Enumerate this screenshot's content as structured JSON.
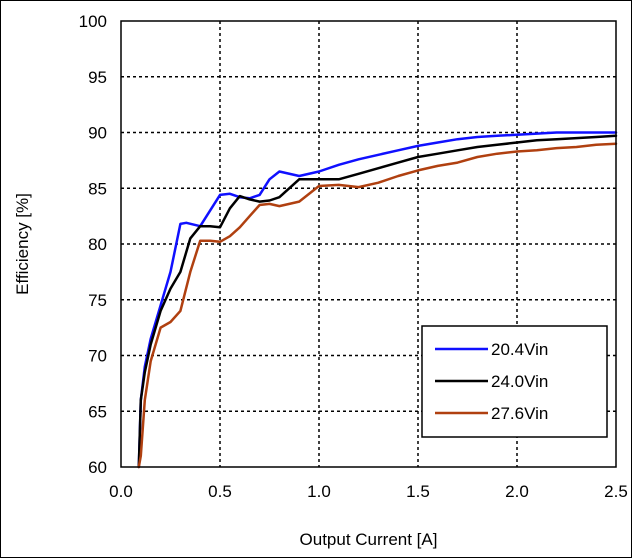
{
  "chart_data": {
    "type": "line",
    "title": "",
    "xlabel": "Output Current [A]",
    "ylabel": "Efficiency [%]",
    "xlim": [
      0.0,
      2.5
    ],
    "ylim": [
      60,
      100
    ],
    "xticks": [
      "0.0",
      "0.5",
      "1.0",
      "1.5",
      "2.0",
      "2.5"
    ],
    "yticks": [
      "60",
      "65",
      "70",
      "75",
      "80",
      "85",
      "90",
      "95",
      "100"
    ],
    "grid": true,
    "legend_position": "bottom-right",
    "series": [
      {
        "name": "20.4Vin",
        "color": "#1010ff",
        "points": [
          [
            0.09,
            60
          ],
          [
            0.1,
            66
          ],
          [
            0.12,
            69
          ],
          [
            0.15,
            71.5
          ],
          [
            0.2,
            74.5
          ],
          [
            0.25,
            77.5
          ],
          [
            0.3,
            81.8
          ],
          [
            0.33,
            81.9
          ],
          [
            0.4,
            81.6
          ],
          [
            0.45,
            83
          ],
          [
            0.5,
            84.4
          ],
          [
            0.55,
            84.5
          ],
          [
            0.6,
            84.2
          ],
          [
            0.65,
            84.1
          ],
          [
            0.7,
            84.4
          ],
          [
            0.75,
            85.8
          ],
          [
            0.8,
            86.5
          ],
          [
            0.9,
            86.1
          ],
          [
            1.0,
            86.5
          ],
          [
            1.1,
            87.1
          ],
          [
            1.2,
            87.6
          ],
          [
            1.3,
            88
          ],
          [
            1.4,
            88.4
          ],
          [
            1.5,
            88.8
          ],
          [
            1.6,
            89.1
          ],
          [
            1.7,
            89.4
          ],
          [
            1.8,
            89.6
          ],
          [
            1.9,
            89.7
          ],
          [
            2.0,
            89.8
          ],
          [
            2.1,
            89.9
          ],
          [
            2.2,
            90.0
          ],
          [
            2.3,
            90.0
          ],
          [
            2.4,
            90.0
          ],
          [
            2.5,
            90.0
          ]
        ]
      },
      {
        "name": "24.0Vin",
        "color": "#000000",
        "points": [
          [
            0.09,
            60
          ],
          [
            0.1,
            66
          ],
          [
            0.12,
            68.5
          ],
          [
            0.15,
            71
          ],
          [
            0.2,
            74
          ],
          [
            0.25,
            76
          ],
          [
            0.3,
            77.5
          ],
          [
            0.35,
            80.5
          ],
          [
            0.4,
            81.6
          ],
          [
            0.45,
            81.6
          ],
          [
            0.5,
            81.5
          ],
          [
            0.55,
            83.2
          ],
          [
            0.6,
            84.3
          ],
          [
            0.65,
            84
          ],
          [
            0.7,
            83.8
          ],
          [
            0.75,
            83.9
          ],
          [
            0.8,
            84.2
          ],
          [
            0.9,
            85.8
          ],
          [
            1.0,
            85.8
          ],
          [
            1.1,
            85.8
          ],
          [
            1.2,
            86.3
          ],
          [
            1.3,
            86.8
          ],
          [
            1.4,
            87.3
          ],
          [
            1.5,
            87.8
          ],
          [
            1.6,
            88.1
          ],
          [
            1.7,
            88.4
          ],
          [
            1.8,
            88.7
          ],
          [
            1.9,
            88.9
          ],
          [
            2.0,
            89.1
          ],
          [
            2.1,
            89.3
          ],
          [
            2.2,
            89.4
          ],
          [
            2.3,
            89.5
          ],
          [
            2.4,
            89.6
          ],
          [
            2.5,
            89.7
          ]
        ]
      },
      {
        "name": "27.6Vin",
        "color": "#b04010",
        "points": [
          [
            0.09,
            60
          ],
          [
            0.1,
            61
          ],
          [
            0.12,
            66
          ],
          [
            0.15,
            69.5
          ],
          [
            0.2,
            72.5
          ],
          [
            0.25,
            73
          ],
          [
            0.3,
            74
          ],
          [
            0.35,
            77.5
          ],
          [
            0.4,
            80.3
          ],
          [
            0.45,
            80.3
          ],
          [
            0.5,
            80.2
          ],
          [
            0.55,
            80.7
          ],
          [
            0.6,
            81.5
          ],
          [
            0.65,
            82.5
          ],
          [
            0.7,
            83.5
          ],
          [
            0.75,
            83.6
          ],
          [
            0.8,
            83.4
          ],
          [
            0.9,
            83.8
          ],
          [
            1.0,
            85.2
          ],
          [
            1.1,
            85.3
          ],
          [
            1.2,
            85.1
          ],
          [
            1.3,
            85.5
          ],
          [
            1.4,
            86.1
          ],
          [
            1.5,
            86.6
          ],
          [
            1.6,
            87.0
          ],
          [
            1.7,
            87.3
          ],
          [
            1.8,
            87.8
          ],
          [
            1.9,
            88.1
          ],
          [
            2.0,
            88.3
          ],
          [
            2.1,
            88.4
          ],
          [
            2.2,
            88.6
          ],
          [
            2.3,
            88.7
          ],
          [
            2.4,
            88.9
          ],
          [
            2.5,
            89.0
          ]
        ]
      }
    ]
  }
}
